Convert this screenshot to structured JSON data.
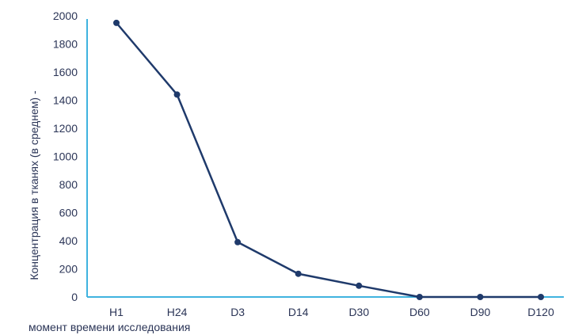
{
  "chart_data": {
    "type": "line",
    "title": "",
    "xlabel": "момент времени исследования",
    "ylabel": "Концентрация в тканях (в среднем) -",
    "categories": [
      "H1",
      "H24",
      "D3",
      "D14",
      "D30",
      "D60",
      "D90",
      "D120"
    ],
    "series": [
      {
        "values": [
          1950,
          1440,
          390,
          165,
          80,
          0,
          0,
          0
        ]
      }
    ],
    "ylim": [
      0,
      2000
    ],
    "yticks": [
      0,
      200,
      400,
      600,
      800,
      1000,
      1200,
      1400,
      1600,
      1800,
      2000
    ],
    "grid": false,
    "legend": "none",
    "colors": {
      "line": "#1f3a6b",
      "axis": "#3fb3df",
      "text": "#2b3557"
    }
  }
}
